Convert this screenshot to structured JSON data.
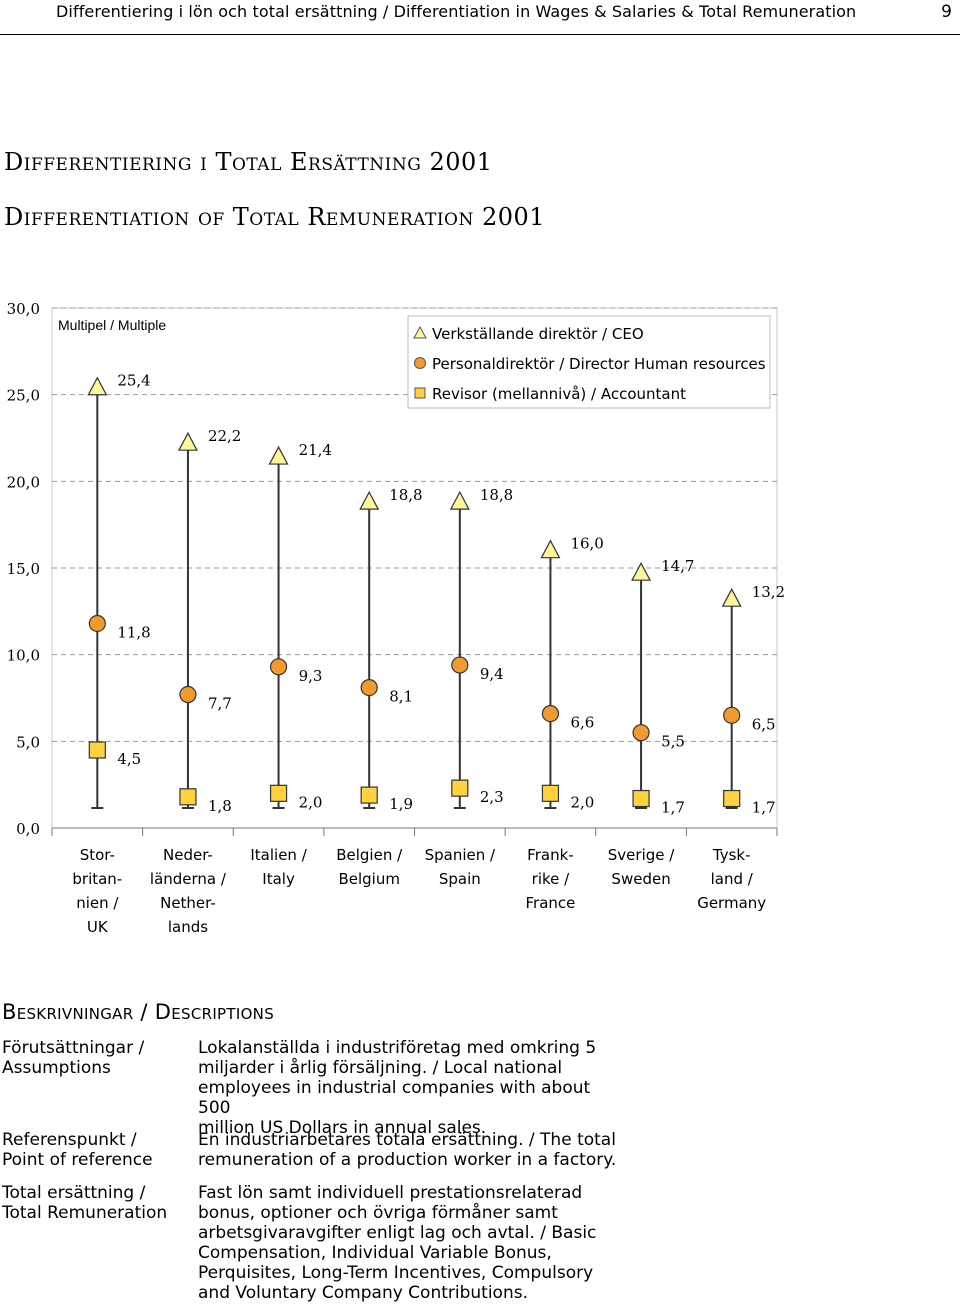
{
  "header": {
    "title": "Differentiering i lön och total ersättning / Differentiation in Wages & Salaries & Total Remuneration",
    "page_number": "9"
  },
  "titles": {
    "line1": "Differentiering i Total Ersättning 2001",
    "line2": "Differentiation of Total Remuneration 2001"
  },
  "chart_data": {
    "type": "scatter",
    "chart_label": "Multipel / Multiple",
    "ylim": [
      0,
      30
    ],
    "yticks": [
      "0,0",
      "5,0",
      "10,0",
      "15,0",
      "20,0",
      "25,0",
      "30,0"
    ],
    "grid": "horizontal-dashed",
    "legend_position": "top-right",
    "categories": [
      [
        "Stor-",
        "britan-",
        "nien /",
        "UK"
      ],
      [
        "Neder-",
        "länderna /",
        "Nether-",
        "lands"
      ],
      [
        "Italien /",
        "Italy"
      ],
      [
        "Belgien /",
        "Belgium"
      ],
      [
        "Spanien /",
        "Spain"
      ],
      [
        "Frank-",
        "rike /",
        "France"
      ],
      [
        "Sverige /",
        "Sweden"
      ],
      [
        "Tysk-",
        "land /",
        "Germany"
      ]
    ],
    "series": [
      {
        "name": "Verkställande direktör / CEO",
        "marker": "triangle",
        "color": "#FFF59B",
        "values": [
          25.4,
          22.2,
          21.4,
          18.8,
          18.8,
          16.0,
          14.7,
          13.2
        ],
        "labels": [
          "25,4",
          "22,2",
          "21,4",
          "18,8",
          "18,8",
          "16,0",
          "14,7",
          "13,2"
        ]
      },
      {
        "name": "Personaldirektör / Director Human resources",
        "marker": "circle",
        "color": "#F39A2E",
        "values": [
          11.8,
          7.7,
          9.3,
          8.1,
          9.4,
          6.6,
          5.5,
          6.5
        ],
        "labels": [
          "11,8",
          "7,7",
          "9,3",
          "8,1",
          "9,4",
          "6,6",
          "5,5",
          "6,5"
        ]
      },
      {
        "name": "Revisor (mellannivå) / Accountant",
        "marker": "square",
        "color": "#FFD23F",
        "values": [
          4.5,
          1.8,
          2.0,
          1.9,
          2.3,
          2.0,
          1.7,
          1.7
        ],
        "labels": [
          "4,5",
          "1,8",
          "2,0",
          "1,9",
          "2,3",
          "2,0",
          "1,7",
          "1,7"
        ]
      }
    ]
  },
  "descriptions": {
    "heading": "Beskrivningar / Descriptions",
    "rows": [
      {
        "term": [
          "Förutsättningar /",
          "Assumptions"
        ],
        "definition": [
          "Lokalanställda i industriföretag med omkring 5",
          "miljarder i årlig försäljning. / Local national",
          "employees in industrial companies with about 500",
          "million US Dollars in annual sales."
        ]
      },
      {
        "term": [
          "Referenspunkt /",
          "Point of reference"
        ],
        "definition": [
          "En industriarbetares totala ersättning. / The total",
          "remuneration of a production worker in a factory."
        ]
      },
      {
        "term": [
          "Total ersättning /",
          "Total Remuneration"
        ],
        "definition": [
          "Fast lön samt individuell prestationsrelaterad",
          "bonus, optioner och övriga förmåner samt",
          "arbetsgivaravgifter enligt lag och avtal. / Basic",
          "Compensation, Individual Variable Bonus,",
          "Perquisites, Long-Term Incentives, Compulsory",
          "and Voluntary Company Contributions."
        ]
      }
    ]
  }
}
